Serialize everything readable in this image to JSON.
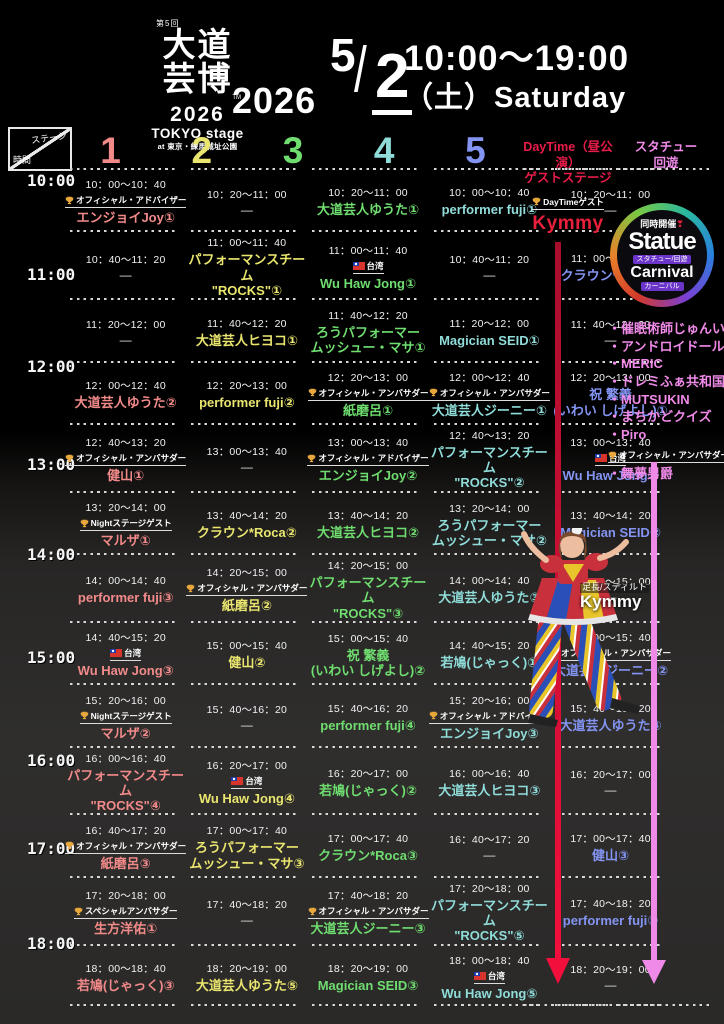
{
  "header": {
    "logo": {
      "edition": "第5回",
      "title_line1": "大道",
      "title_line2": "芸博",
      "tm": "TM",
      "year": "2026",
      "stage": "TOKYO stage",
      "venue": "at 東京・練馬城址公園"
    },
    "date": {
      "year": "2026",
      "month": "5",
      "day": "2"
    },
    "time_range": "10:00〜19:00",
    "weekday": "（土）Saturday"
  },
  "axis_corner": {
    "stage_label": "ステージ",
    "time_label": "時間"
  },
  "time_axis": {
    "labels": [
      "10:00",
      "11:00",
      "12:00",
      "13:00",
      "14:00",
      "15:00",
      "16:00",
      "17:00",
      "18:00"
    ]
  },
  "stage_headers": [
    {
      "label": "1",
      "color": "#f28a8a"
    },
    {
      "label": "2",
      "color": "#e9e56e"
    },
    {
      "label": "3",
      "color": "#6fdd6f"
    },
    {
      "label": "4",
      "color": "#8fdcd9"
    },
    {
      "label": "5",
      "color": "#8494f2"
    }
  ],
  "badges": {
    "advisor": {
      "icon": "trophy",
      "label": "オフィシャル・アドバイザー"
    },
    "ambassador": {
      "icon": "trophy",
      "label": "オフィシャル・アンバサダー"
    },
    "special": {
      "icon": "trophy",
      "label": "スペシャルアンバサダー"
    },
    "night": {
      "icon": "trophy",
      "label": "Nightステージゲスト"
    },
    "daytime": {
      "icon": "trophy",
      "label": "DayTimeゲスト"
    },
    "taiwan": {
      "icon": "taiwan-flag",
      "label": "台湾"
    }
  },
  "daytime_column": {
    "header_line1": "DayTime（昼公演）",
    "header_line2": "ゲストステージ",
    "color": "#e81c48",
    "badge": "daytime",
    "performer": "Kymmy",
    "photo_caption_role": "足長/スティルト",
    "photo_caption_name": "Kymmy"
  },
  "statue_column": {
    "header_line1": "スタチュー",
    "header_line2": "回遊",
    "color": "#f08ae8",
    "logo": {
      "top": "同時開催❣",
      "main": "Statue",
      "sub1": "スタチュー/回遊",
      "main2": "Carnival",
      "sub2": "カーニバル"
    },
    "items": [
      {
        "name": "催眠術師じゅんいち"
      },
      {
        "name": "アンドロイドールYuE"
      },
      {
        "name": "MERIC"
      },
      {
        "name": "ドレミふぁ共和国"
      },
      {
        "name": "MUTSUKIN"
      },
      {
        "name": "まちかどクイズ"
      },
      {
        "name": "Piro"
      },
      {
        "name": "舞夢男爵",
        "badge": "ambassador"
      }
    ]
  },
  "schedule": {
    "dash": "—",
    "rows": [
      {
        "cells": [
          {
            "time": "10：00～10：40",
            "badge": "advisor",
            "name": "エンジョイJoy①"
          },
          {
            "time": "10：20～11：00"
          },
          {
            "time": "10：20～11：00",
            "name": "大道芸人ゆうた①"
          },
          {
            "time": "10：00～10：40",
            "name": "performer fuji①"
          },
          {
            "time": "10：20～11：00"
          }
        ]
      },
      {
        "cells": [
          {
            "time": "10：40～11：20"
          },
          {
            "time": "11：00～11：40",
            "name": "パフォーマンスチーム\n\"ROCKS\"①"
          },
          {
            "time": "11：00～11：40",
            "badge": "taiwan",
            "name": "Wu Haw Jong①"
          },
          {
            "time": "10：40～11：20"
          },
          {
            "time": "11：00～11：40",
            "name": "クラウン*Roca①"
          }
        ]
      },
      {
        "cells": [
          {
            "time": "11：20～12：00"
          },
          {
            "time": "11：40～12：20",
            "name": "大道芸人ヒヨコ①"
          },
          {
            "time": "11：40～12：20",
            "name": "ろうパフォーマー\nムッシュー・マサ①"
          },
          {
            "time": "11：20～12：00",
            "name": "Magician SEID①"
          },
          {
            "time": "11：40～12：20"
          }
        ]
      },
      {
        "cells": [
          {
            "time": "12：00～12：40",
            "name": "大道芸人ゆうた②"
          },
          {
            "time": "12：20～13：00",
            "name": "performer fuji②"
          },
          {
            "time": "12：20～13：00",
            "badge": "ambassador",
            "name": "紙磨呂①"
          },
          {
            "time": "12：00～12：40",
            "badge": "ambassador",
            "name": "大道芸人ジーニー①"
          },
          {
            "time": "12：20～13：00",
            "name": "祝 繁義\n(いわい しげよし)①"
          }
        ]
      },
      {
        "cells": [
          {
            "time": "12：40～13：20",
            "badge": "ambassador",
            "name": "健山①"
          },
          {
            "time": "13：00～13：40"
          },
          {
            "time": "13：00～13：40",
            "badge": "advisor",
            "name": "エンジョイJoy②"
          },
          {
            "time": "12：40～13：20",
            "name": "パフォーマンスチーム\n\"ROCKS\"②"
          },
          {
            "time": "13：00～13：40",
            "badge": "taiwan",
            "name": "Wu Haw Jong②"
          }
        ]
      },
      {
        "cells": [
          {
            "time": "13：20～14：00",
            "badge": "night",
            "name": "マルザ①"
          },
          {
            "time": "13：40～14：20",
            "name": "クラウン*Roca②"
          },
          {
            "time": "13：40～14：20",
            "name": "大道芸人ヒヨコ②"
          },
          {
            "time": "13：20～14：00",
            "name": "ろうパフォーマー\nムッシュー・マサ②"
          },
          {
            "time": "13：40～14：20",
            "name": "Magician SEID②"
          }
        ]
      },
      {
        "cells": [
          {
            "time": "14：00～14：40",
            "name": "performer fuji③"
          },
          {
            "time": "14：20～15：00",
            "badge": "ambassador",
            "name": "紙磨呂②"
          },
          {
            "time": "14：20～15：00",
            "name": "パフォーマンスチーム\n\"ROCKS\"③"
          },
          {
            "time": "14：00～14：40",
            "name": "大道芸人ゆうた③"
          },
          {
            "time": "14：20～15：00"
          }
        ]
      },
      {
        "cells": [
          {
            "time": "14：40～15：20",
            "badge": "taiwan",
            "name": "Wu Haw Jong③"
          },
          {
            "time": "15：00～15：40",
            "name": "健山②"
          },
          {
            "time": "15：00～15：40",
            "name": "祝 繁義\n(いわい しげよし)②"
          },
          {
            "time": "14：40～15：20",
            "name": "若鳩(じゃっく)①"
          },
          {
            "time": "15：00～15：40",
            "badge": "ambassador",
            "name": "大道芸人ジーニー②"
          }
        ]
      },
      {
        "cells": [
          {
            "time": "15：20～16：00",
            "badge": "night",
            "name": "マルザ②"
          },
          {
            "time": "15：40～16：20"
          },
          {
            "time": "15：40～16：20",
            "name": "performer fuji④"
          },
          {
            "time": "15：20～16：00",
            "badge": "advisor",
            "name": "エンジョイJoy③"
          },
          {
            "time": "15：40～16：20",
            "name": "大道芸人ゆうた④"
          }
        ]
      },
      {
        "cells": [
          {
            "time": "16：00～16：40",
            "name": "パフォーマンスチーム\n\"ROCKS\"④"
          },
          {
            "time": "16：20～17：00",
            "badge": "taiwan",
            "name": "Wu Haw Jong④"
          },
          {
            "time": "16：20～17：00",
            "name": "若鳩(じゃっく)②"
          },
          {
            "time": "16：00～16：40",
            "name": "大道芸人ヒヨコ③"
          },
          {
            "time": "16：20～17：00"
          }
        ]
      },
      {
        "cells": [
          {
            "time": "16：40～17：20",
            "badge": "ambassador",
            "name": "紙磨呂③"
          },
          {
            "time": "17：00～17：40",
            "name": "ろうパフォーマー\nムッシュー・マサ③"
          },
          {
            "time": "17：00～17：40",
            "name": "クラウン*Roca③"
          },
          {
            "time": "16：40～17：20"
          },
          {
            "time": "17：00～17：40",
            "name": "健山③"
          }
        ]
      },
      {
        "cells": [
          {
            "time": "17：20～18：00",
            "badge": "special",
            "name": "生方洋佑①"
          },
          {
            "time": "17：40～18：20"
          },
          {
            "time": "17：40～18：20",
            "badge": "ambassador",
            "name": "大道芸人ジーニー③"
          },
          {
            "time": "17：20～18：00",
            "name": "パフォーマンスチーム\n\"ROCKS\"⑤"
          },
          {
            "time": "17：40～18：20",
            "name": "performer fuji⑤"
          }
        ]
      },
      {
        "cells": [
          {
            "time": "18：00～18：40",
            "name": "若鳩(じゃっく)③"
          },
          {
            "time": "18：20～19：00",
            "name": "大道芸人ゆうた⑤"
          },
          {
            "time": "18：20～19：00",
            "name": "Magician SEID③"
          },
          {
            "time": "18：00～18：40",
            "badge": "taiwan",
            "name": "Wu Haw Jong⑤"
          },
          {
            "time": "18：20～19：00"
          }
        ]
      }
    ]
  }
}
